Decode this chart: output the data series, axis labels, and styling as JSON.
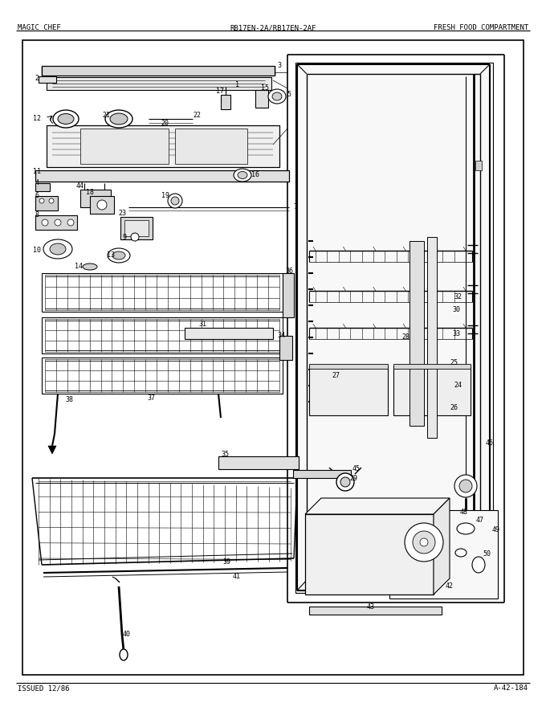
{
  "title_left": "MAGIC CHEF",
  "title_center": "RB17EN-2A/RB17EN-2AF",
  "title_right": "FRESH FOOD COMPARTMENT",
  "footer_left": "ISSUED 12/86",
  "footer_right": "A-42-184",
  "bg_color": "#ffffff",
  "text_color": "#000000",
  "fig_width": 6.8,
  "fig_height": 8.9,
  "dpi": 100
}
